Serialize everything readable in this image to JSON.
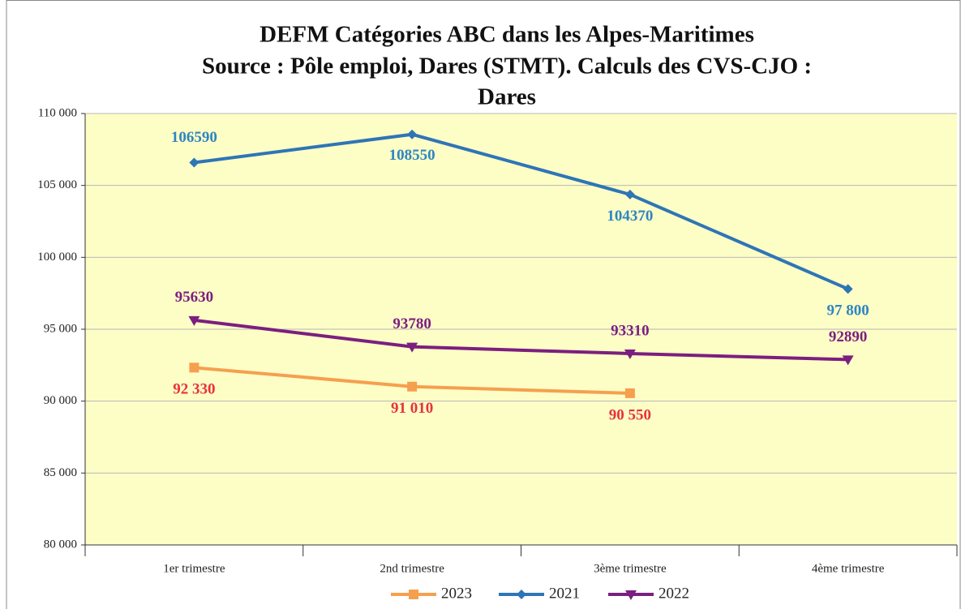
{
  "chart_data": {
    "type": "line",
    "title": [
      "DEFM Catégories ABC dans les Alpes-Maritimes",
      "Source : Pôle emploi, Dares (STMT). Calculs des CVS-CJO :",
      "Dares"
    ],
    "categories": [
      "1er trimestre",
      "2nd  trimestre",
      "3ème trimestre",
      "4ème trimestre"
    ],
    "series": [
      {
        "name": "2023",
        "color": "#f5a04f",
        "label_color": "#e8323c",
        "marker": "square",
        "values": [
          92330,
          91010,
          90550,
          null
        ],
        "value_labels": [
          "92 330",
          "91 010",
          "90 550",
          null
        ]
      },
      {
        "name": "2021",
        "color": "#2e75b6",
        "label_color": "#2e86c1",
        "marker": "diamond",
        "values": [
          106590,
          108550,
          104370,
          97800
        ],
        "value_labels": [
          "106590",
          "108550",
          "104370",
          "97 800"
        ]
      },
      {
        "name": "2022",
        "color": "#7b1f7f",
        "label_color": "#7b1f7f",
        "marker": "triangle-down",
        "values": [
          95630,
          93780,
          93310,
          92890
        ]
      }
    ],
    "ylim": [
      80000,
      110000
    ],
    "yticks": [
      {
        "value": 80000,
        "label": "80 000"
      },
      {
        "value": 85000,
        "label": "85 000"
      },
      {
        "value": 90000,
        "label": "90 000"
      },
      {
        "value": 95000,
        "label": "95 000"
      },
      {
        "value": 100000,
        "label": "100 000"
      },
      {
        "value": 105000,
        "label": "105 000"
      },
      {
        "value": 110000,
        "label": "110 000"
      }
    ],
    "grid": true,
    "legend": "bottom"
  }
}
